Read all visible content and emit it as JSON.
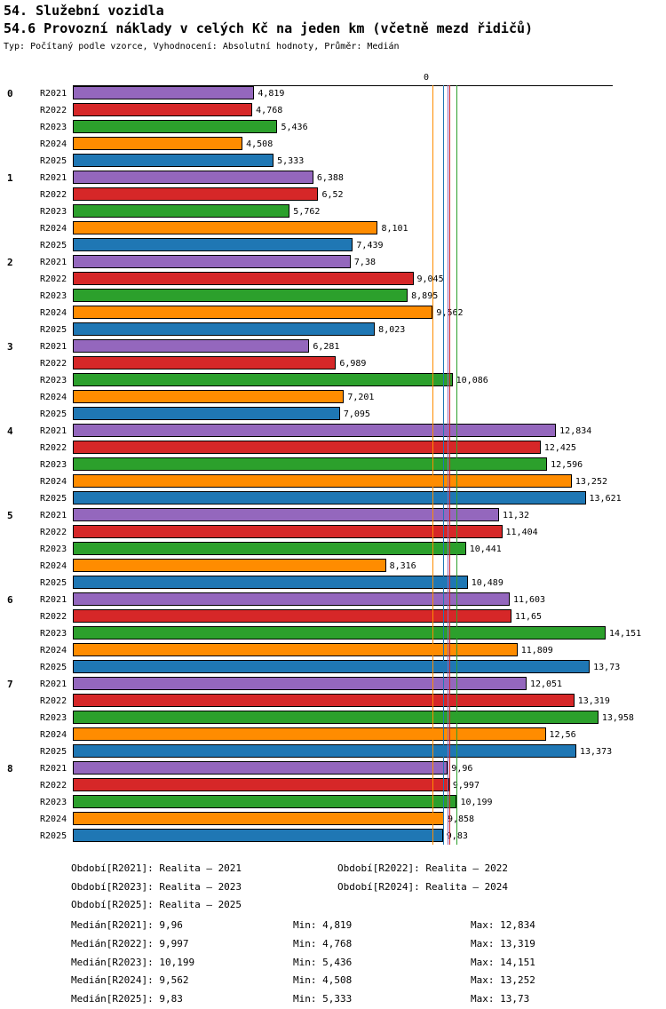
{
  "header": {
    "title": "54. Služební vozidla",
    "subtitle": "54.6 Provozní náklady v celých Kč na jeden km (včetně mezd řidičů)",
    "meta": "Typ: Počítaný podle vzorce, Vyhodnocení: Absolutní hodnoty, Průměr: Medián"
  },
  "chart_data": {
    "type": "bar",
    "orientation": "horizontal",
    "axis_origin_label": "0",
    "xlim": [
      0,
      14.2
    ],
    "grid": false,
    "legend_position": "bottom",
    "groups": [
      "0",
      "1",
      "2",
      "3",
      "4",
      "5",
      "6",
      "7",
      "8"
    ],
    "series": [
      {
        "name": "R2021",
        "color": "#9467bd",
        "values": [
          4.819,
          6.388,
          7.38,
          6.281,
          12.834,
          11.32,
          11.603,
          12.051,
          9.96
        ],
        "labels": [
          "4,819",
          "6,388",
          "7,38",
          "6,281",
          "12,834",
          "11,32",
          "11,603",
          "12,051",
          "9,96"
        ],
        "median": 9.96
      },
      {
        "name": "R2022",
        "color": "#d62728",
        "values": [
          4.768,
          6.52,
          9.045,
          6.989,
          12.425,
          11.404,
          11.65,
          13.319,
          9.997
        ],
        "labels": [
          "4,768",
          "6,52",
          "9,045",
          "6,989",
          "12,425",
          "11,404",
          "11,65",
          "13,319",
          "9,997"
        ],
        "median": 9.997
      },
      {
        "name": "R2023",
        "color": "#2ca02c",
        "values": [
          5.436,
          5.762,
          8.895,
          10.086,
          12.596,
          10.441,
          14.151,
          13.958,
          10.199
        ],
        "labels": [
          "5,436",
          "5,762",
          "8,895",
          "10,086",
          "12,596",
          "10,441",
          "14,151",
          "13,958",
          "10,199"
        ],
        "median": 10.199
      },
      {
        "name": "R2024",
        "color": "#ff8c00",
        "values": [
          4.508,
          8.101,
          9.562,
          7.201,
          13.252,
          8.316,
          11.809,
          12.56,
          9.858
        ],
        "labels": [
          "4,508",
          "8,101",
          "9,562",
          "7,201",
          "13,252",
          "8,316",
          "11,809",
          "12,56",
          "9,858"
        ],
        "median": 9.562
      },
      {
        "name": "R2025",
        "color": "#1f77b4",
        "values": [
          5.333,
          7.439,
          8.023,
          7.095,
          13.621,
          10.489,
          13.73,
          13.373,
          9.83
        ],
        "labels": [
          "5,333",
          "7,439",
          "8,023",
          "7,095",
          "13,621",
          "10,489",
          "13,73",
          "13,373",
          "9,83"
        ],
        "median": 9.83
      }
    ],
    "legend": [
      "Období[R2021]: Realita – 2021",
      "Období[R2022]: Realita – 2022",
      "Období[R2023]: Realita – 2023",
      "Období[R2024]: Realita – 2024",
      "Období[R2025]: Realita – 2025"
    ],
    "stats": [
      {
        "median": "Medián[R2021]: 9,96",
        "min": "Min: 4,819",
        "max": "Max: 12,834"
      },
      {
        "median": "Medián[R2022]: 9,997",
        "min": "Min: 4,768",
        "max": "Max: 13,319"
      },
      {
        "median": "Medián[R2023]: 10,199",
        "min": "Min: 5,436",
        "max": "Max: 14,151"
      },
      {
        "median": "Medián[R2024]: 9,562",
        "min": "Min: 4,508",
        "max": "Max: 13,252"
      },
      {
        "median": "Medián[R2025]: 9,83",
        "min": "Min: 5,333",
        "max": "Max: 13,73"
      }
    ]
  }
}
